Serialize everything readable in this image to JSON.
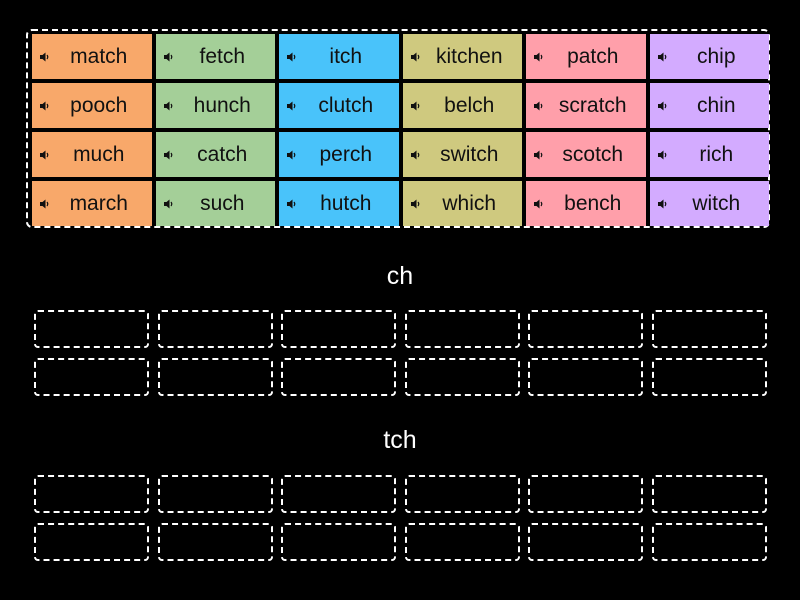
{
  "colors": {
    "background": "#000000",
    "columns": [
      "#F8A86A",
      "#A4CF98",
      "#49C3FA",
      "#CFC97F",
      "#FF9FAA",
      "#D3ABFF"
    ]
  },
  "tiles": {
    "icon": "speaker-icon",
    "rows": [
      [
        "match",
        "fetch",
        "itch",
        "kitchen",
        "patch",
        "chip"
      ],
      [
        "pooch",
        "hunch",
        "clutch",
        "belch",
        "scratch",
        "chin"
      ],
      [
        "much",
        "catch",
        "perch",
        "switch",
        "scotch",
        "rich"
      ],
      [
        "march",
        "such",
        "hutch",
        "which",
        "bench",
        "witch"
      ]
    ]
  },
  "groups": [
    {
      "label": "ch",
      "slots": 12
    },
    {
      "label": "tch",
      "slots": 12
    }
  ]
}
